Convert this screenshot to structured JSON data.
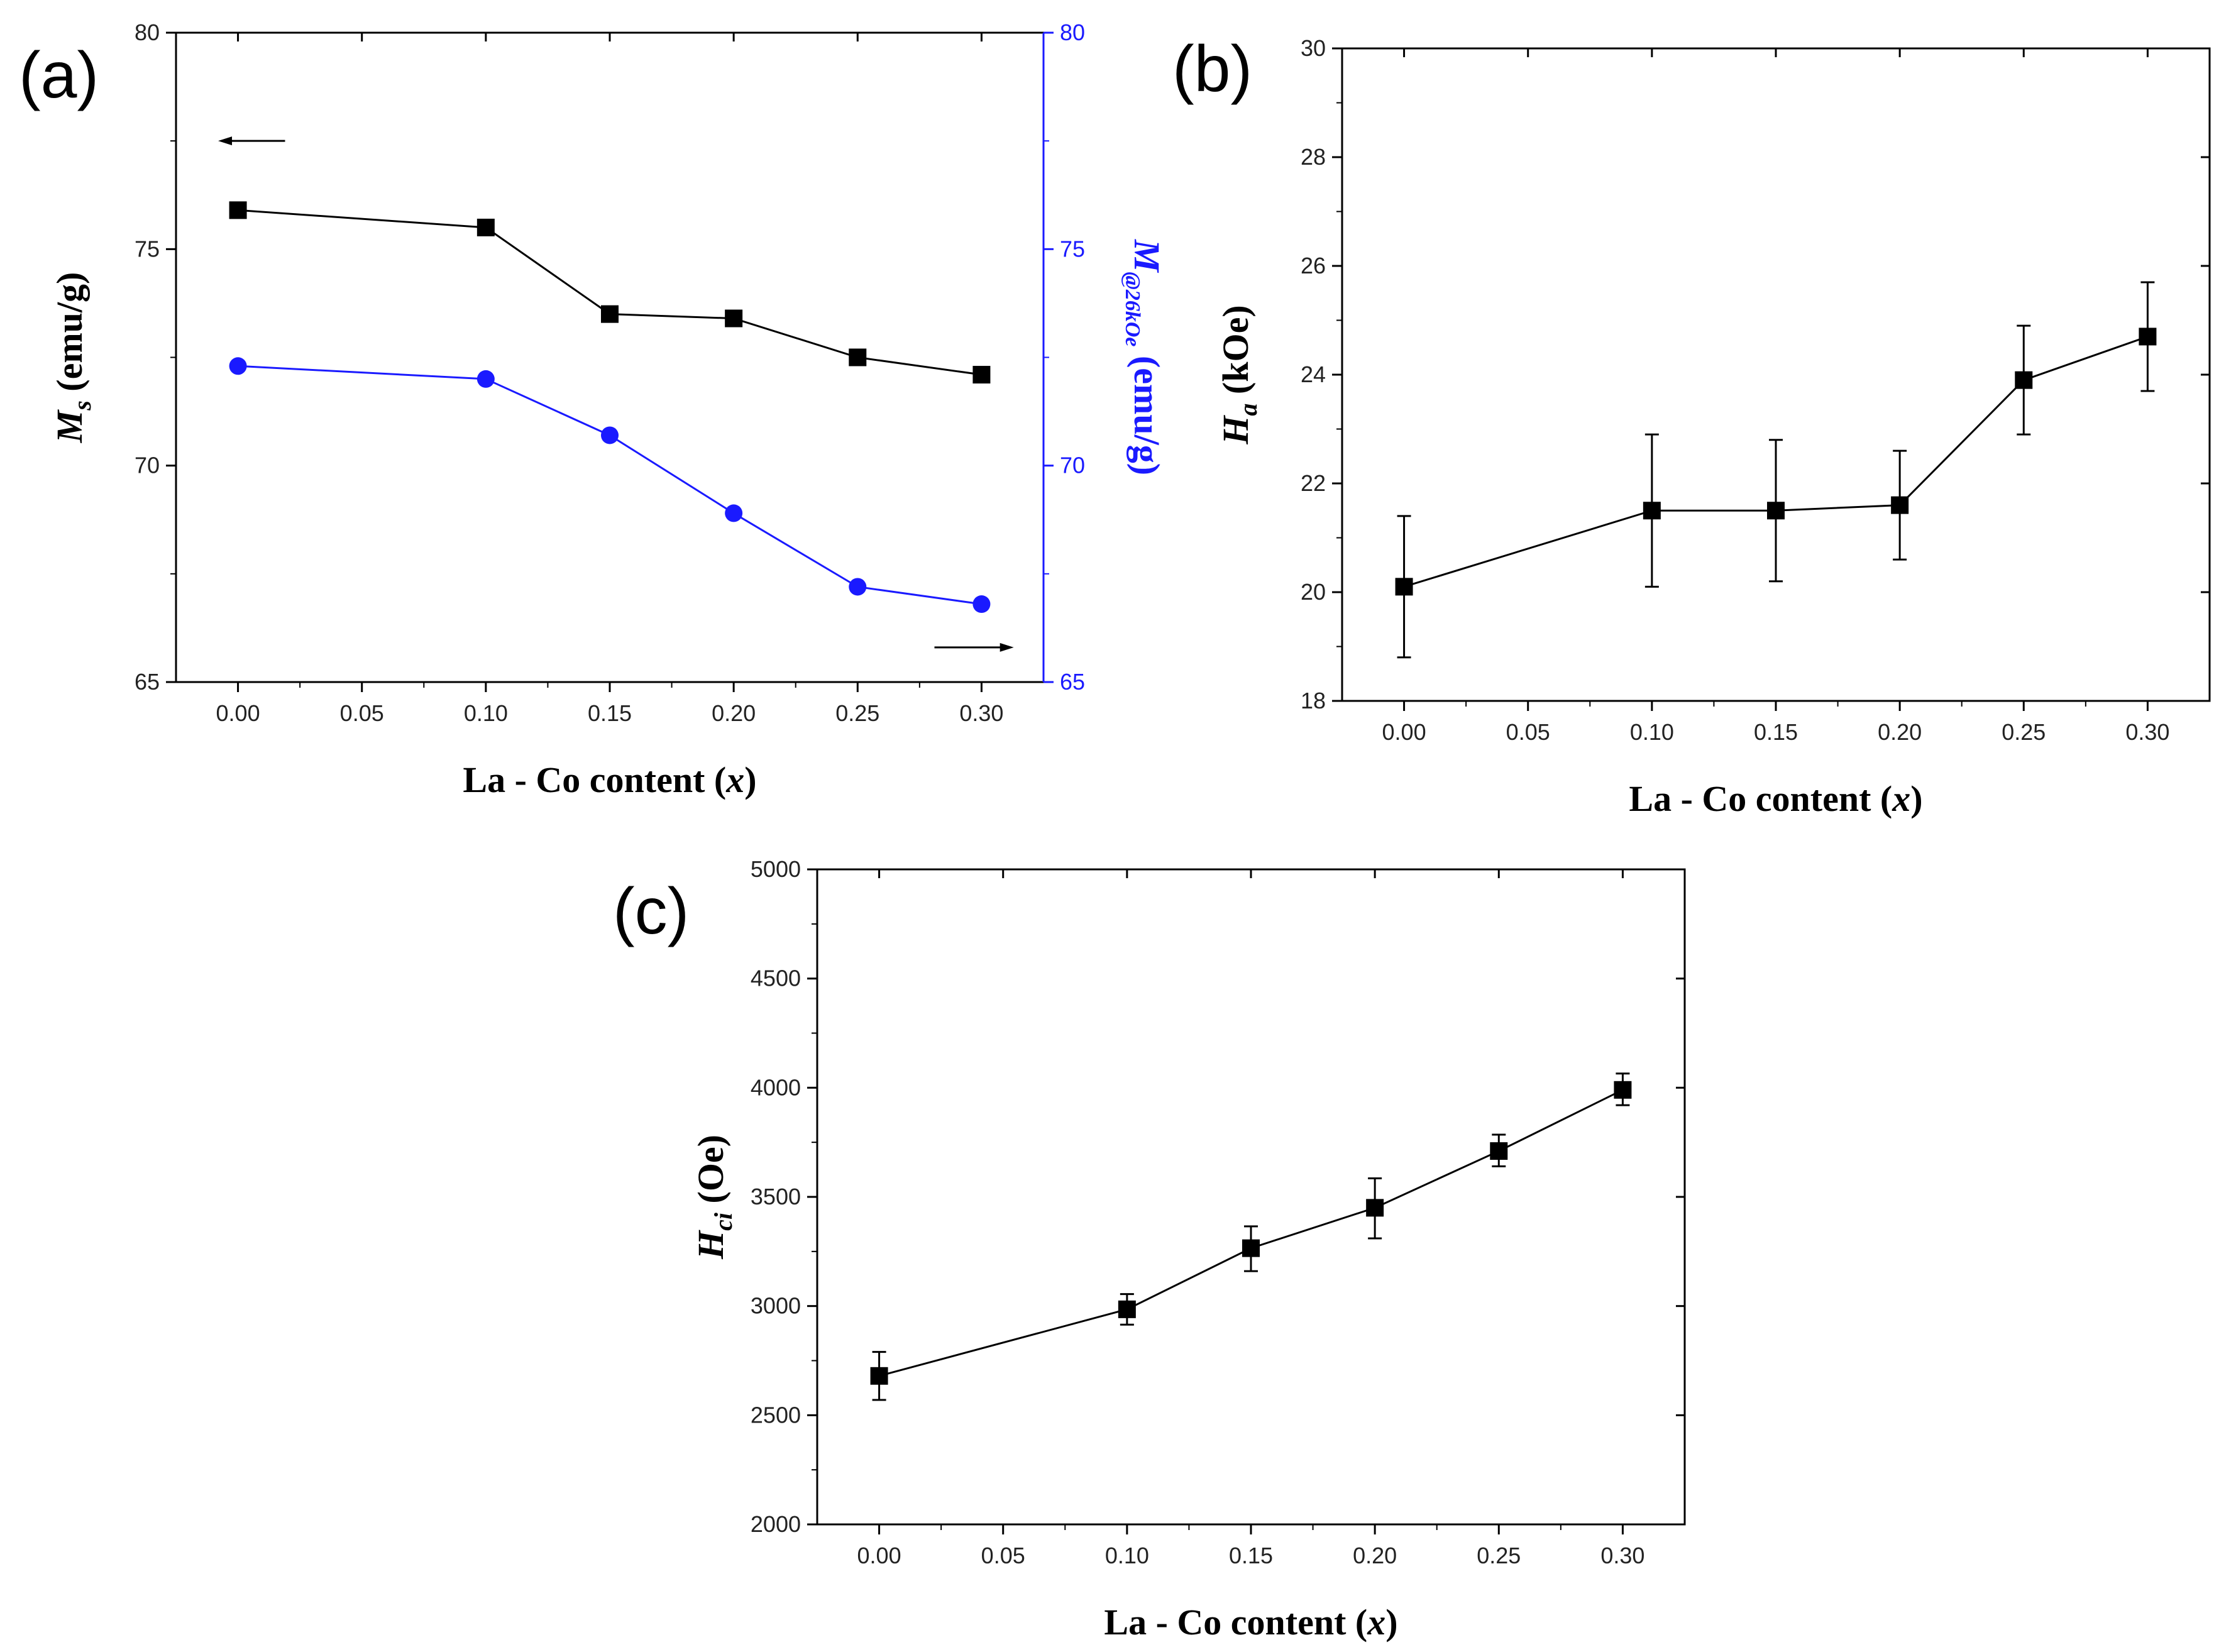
{
  "figure": {
    "panels": [
      "(a)",
      "(b)",
      "(c)"
    ]
  },
  "chart_data": [
    {
      "id": "a",
      "type": "line",
      "panel_label": "(a)",
      "xlabel": "La - Co content (",
      "xlabel_var": "x",
      "xlabel_close": ")",
      "ylabel_var": "M",
      "ylabel_sub": "s",
      "ylabel_unit": " (emu/g)",
      "y2label_var": "M",
      "y2label_sub": "@26kOe",
      "y2label_unit": " (emu/g)",
      "xlim": [
        -0.025,
        0.325
      ],
      "ylim": [
        65,
        80
      ],
      "y2lim": [
        65,
        80
      ],
      "xticks": [
        "0.00",
        "0.05",
        "0.10",
        "0.15",
        "0.20",
        "0.25",
        "0.30"
      ],
      "yticks": [
        "65",
        "70",
        "75",
        "80"
      ],
      "y2ticks": [
        "65",
        "70",
        "75",
        "80"
      ],
      "x": [
        0.0,
        0.1,
        0.15,
        0.2,
        0.25,
        0.3
      ],
      "series": [
        {
          "name": "Ms",
          "axis": "left",
          "color": "#000000",
          "marker": "square",
          "values": [
            75.9,
            75.5,
            73.5,
            73.4,
            72.5,
            72.1
          ]
        },
        {
          "name": "M@26kOe",
          "axis": "right",
          "color": "#1a1aff",
          "marker": "circle",
          "values": [
            72.3,
            72.0,
            70.7,
            68.9,
            67.2,
            66.8
          ]
        }
      ],
      "right_axis_color": "#1a1aff",
      "annotations": [
        "left-arrow pointing to left axis (top-left)",
        "right-arrow pointing to right axis (bottom-right)"
      ]
    },
    {
      "id": "b",
      "type": "line",
      "panel_label": "(b)",
      "xlabel": "La - Co content (",
      "xlabel_var": "x",
      "xlabel_close": ")",
      "ylabel_var": "H",
      "ylabel_sub": "a",
      "ylabel_unit": " (kOe)",
      "xlim": [
        -0.025,
        0.325
      ],
      "ylim": [
        18,
        30
      ],
      "xticks": [
        "0.00",
        "0.05",
        "0.10",
        "0.15",
        "0.20",
        "0.25",
        "0.30"
      ],
      "yticks": [
        "18",
        "20",
        "22",
        "24",
        "26",
        "28",
        "30"
      ],
      "x": [
        0.0,
        0.1,
        0.15,
        0.2,
        0.25,
        0.3
      ],
      "series": [
        {
          "name": "Ha",
          "color": "#000000",
          "marker": "square",
          "values": [
            20.1,
            21.5,
            21.5,
            21.6,
            23.9,
            24.7
          ],
          "err_low": [
            18.8,
            20.1,
            20.2,
            20.6,
            22.9,
            23.7
          ],
          "err_high": [
            21.4,
            22.9,
            22.8,
            22.6,
            24.9,
            25.7
          ]
        }
      ]
    },
    {
      "id": "c",
      "type": "line",
      "panel_label": "(c)",
      "xlabel": "La - Co content (",
      "xlabel_var": "x",
      "xlabel_close": ")",
      "ylabel_var": "H",
      "ylabel_sub": "ci",
      "ylabel_unit": " (Oe)",
      "xlim": [
        -0.025,
        0.325
      ],
      "ylim": [
        2000,
        5000
      ],
      "xticks": [
        "0.00",
        "0.05",
        "0.10",
        "0.15",
        "0.20",
        "0.25",
        "0.30"
      ],
      "yticks": [
        "2000",
        "2500",
        "3000",
        "3500",
        "4000",
        "4500",
        "5000"
      ],
      "x": [
        0.0,
        0.1,
        0.15,
        0.2,
        0.25,
        0.3
      ],
      "series": [
        {
          "name": "Hci",
          "color": "#000000",
          "marker": "square",
          "values": [
            2680,
            2985,
            3265,
            3450,
            3710,
            3990
          ],
          "err_low": [
            2570,
            2915,
            3160,
            3310,
            3640,
            3920
          ],
          "err_high": [
            2790,
            3055,
            3365,
            3585,
            3785,
            4065
          ]
        }
      ]
    }
  ]
}
